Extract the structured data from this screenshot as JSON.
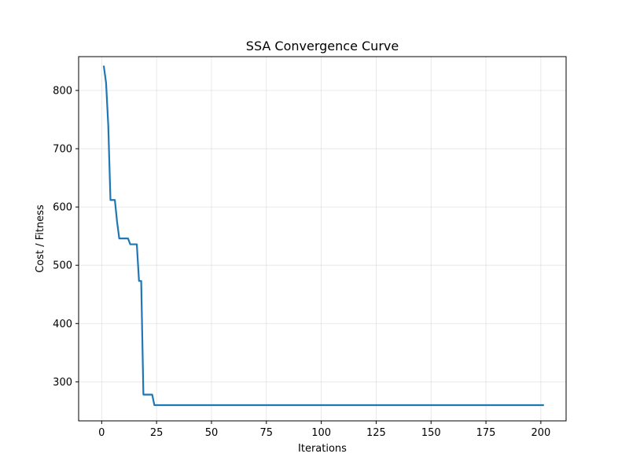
{
  "chart_data": {
    "type": "line",
    "title": "SSA Convergence Curve",
    "xlabel": "Iterations",
    "ylabel": "Cost / Fitness",
    "xlim": [
      -10.5,
      211.5
    ],
    "ylim": [
      233,
      858
    ],
    "xticks": [
      0,
      25,
      50,
      75,
      100,
      125,
      150,
      175,
      200
    ],
    "yticks": [
      300,
      400,
      500,
      600,
      700,
      800
    ],
    "grid": true,
    "legend": "none",
    "series": [
      {
        "color": "#1f77b4",
        "points": [
          [
            1,
            841
          ],
          [
            2,
            813
          ],
          [
            3,
            740
          ],
          [
            4,
            612
          ],
          [
            5,
            612
          ],
          [
            6,
            612
          ],
          [
            7,
            575
          ],
          [
            8,
            546
          ],
          [
            9,
            546
          ],
          [
            10,
            546
          ],
          [
            11,
            546
          ],
          [
            12,
            546
          ],
          [
            13,
            536
          ],
          [
            14,
            536
          ],
          [
            15,
            536
          ],
          [
            16,
            536
          ],
          [
            17,
            473
          ],
          [
            18,
            473
          ],
          [
            19,
            278
          ],
          [
            20,
            278
          ],
          [
            21,
            278
          ],
          [
            22,
            278
          ],
          [
            23,
            278
          ],
          [
            24,
            260
          ],
          [
            25,
            260
          ],
          [
            50,
            260
          ],
          [
            100,
            260
          ],
          [
            150,
            260
          ],
          [
            201,
            260
          ]
        ]
      }
    ]
  }
}
